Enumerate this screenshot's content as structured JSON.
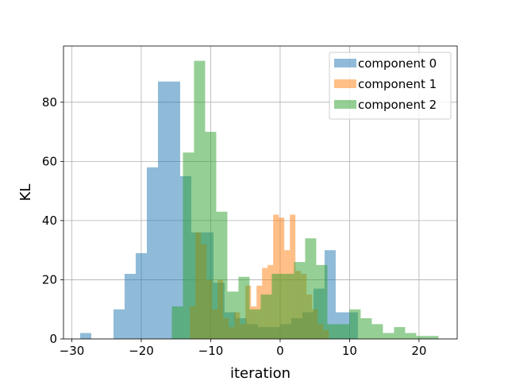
{
  "chart_data": {
    "type": "histogram",
    "xlabel": "iteration",
    "ylabel": "KL",
    "xlim": [
      -31.2,
      25.5
    ],
    "ylim": [
      0,
      99
    ],
    "xticks": [
      -30,
      -20,
      -10,
      0,
      10,
      20
    ],
    "yticks": [
      0,
      20,
      40,
      60,
      80
    ],
    "grid": true,
    "legend_position": "top-right",
    "series": [
      {
        "name": "component 0",
        "color": "#1f77b4",
        "bins": [
          {
            "x0": -28.8,
            "x1": -27.2,
            "value": 2
          },
          {
            "x0": -24.0,
            "x1": -22.4,
            "value": 10
          },
          {
            "x0": -22.4,
            "x1": -20.8,
            "value": 22
          },
          {
            "x0": -20.8,
            "x1": -19.2,
            "value": 29
          },
          {
            "x0": -19.2,
            "x1": -17.6,
            "value": 58
          },
          {
            "x0": -17.6,
            "x1": -16.0,
            "value": 87
          },
          {
            "x0": -16.0,
            "x1": -14.4,
            "value": 87
          },
          {
            "x0": -14.4,
            "x1": -12.8,
            "value": 55
          },
          {
            "x0": -12.8,
            "x1": -11.2,
            "value": 36
          },
          {
            "x0": -11.2,
            "x1": -9.6,
            "value": 36
          },
          {
            "x0": -9.6,
            "x1": -8.0,
            "value": 19
          },
          {
            "x0": -8.0,
            "x1": -6.4,
            "value": 9
          },
          {
            "x0": -6.4,
            "x1": -4.8,
            "value": 7
          },
          {
            "x0": -4.8,
            "x1": -3.2,
            "value": 5
          },
          {
            "x0": -3.2,
            "x1": -1.6,
            "value": 4
          },
          {
            "x0": -1.6,
            "x1": 0.0,
            "value": 4
          },
          {
            "x0": 0.0,
            "x1": 1.6,
            "value": 5
          },
          {
            "x0": 1.6,
            "x1": 3.2,
            "value": 7
          },
          {
            "x0": 3.2,
            "x1": 4.8,
            "value": 9
          },
          {
            "x0": 4.8,
            "x1": 6.4,
            "value": 17
          },
          {
            "x0": 6.4,
            "x1": 8.0,
            "value": 30
          },
          {
            "x0": 8.0,
            "x1": 9.6,
            "value": 9
          },
          {
            "x0": 9.6,
            "x1": 11.2,
            "value": 9
          }
        ]
      },
      {
        "name": "component 1",
        "color": "#ff7f0e",
        "bins": [
          {
            "x0": -13.0,
            "x1": -12.2,
            "value": 11
          },
          {
            "x0": -12.2,
            "x1": -11.4,
            "value": 36
          },
          {
            "x0": -11.4,
            "x1": -10.6,
            "value": 32
          },
          {
            "x0": -10.6,
            "x1": -9.8,
            "value": 20
          },
          {
            "x0": -9.8,
            "x1": -9.0,
            "value": 10
          },
          {
            "x0": -9.0,
            "x1": -8.2,
            "value": 20
          },
          {
            "x0": -8.2,
            "x1": -7.4,
            "value": 7
          },
          {
            "x0": -7.4,
            "x1": -6.6,
            "value": 4
          },
          {
            "x0": -6.6,
            "x1": -5.8,
            "value": 9
          },
          {
            "x0": -5.8,
            "x1": -5.0,
            "value": 5
          },
          {
            "x0": -5.0,
            "x1": -4.2,
            "value": 18
          },
          {
            "x0": -4.2,
            "x1": -3.4,
            "value": 11
          },
          {
            "x0": -3.4,
            "x1": -2.6,
            "value": 18
          },
          {
            "x0": -2.6,
            "x1": -1.8,
            "value": 24
          },
          {
            "x0": -1.8,
            "x1": -1.0,
            "value": 25
          },
          {
            "x0": -1.0,
            "x1": -0.2,
            "value": 42
          },
          {
            "x0": -0.2,
            "x1": 0.6,
            "value": 41
          },
          {
            "x0": 0.6,
            "x1": 1.4,
            "value": 30
          },
          {
            "x0": 1.4,
            "x1": 2.2,
            "value": 42
          },
          {
            "x0": 2.2,
            "x1": 3.0,
            "value": 23
          },
          {
            "x0": 3.0,
            "x1": 3.8,
            "value": 22
          },
          {
            "x0": 3.8,
            "x1": 4.6,
            "value": 15
          },
          {
            "x0": 4.6,
            "x1": 5.4,
            "value": 10
          },
          {
            "x0": 5.4,
            "x1": 6.2,
            "value": 5
          },
          {
            "x0": 6.2,
            "x1": 7.0,
            "value": 3
          }
        ]
      },
      {
        "name": "component 2",
        "color": "#2ca02c",
        "bins": [
          {
            "x0": -15.6,
            "x1": -14.0,
            "value": 11
          },
          {
            "x0": -14.0,
            "x1": -12.4,
            "value": 63
          },
          {
            "x0": -12.4,
            "x1": -10.8,
            "value": 94
          },
          {
            "x0": -10.8,
            "x1": -9.2,
            "value": 70
          },
          {
            "x0": -9.2,
            "x1": -7.6,
            "value": 43
          },
          {
            "x0": -7.6,
            "x1": -6.0,
            "value": 16
          },
          {
            "x0": -6.0,
            "x1": -4.4,
            "value": 21
          },
          {
            "x0": -4.4,
            "x1": -2.8,
            "value": 10
          },
          {
            "x0": -2.8,
            "x1": -1.2,
            "value": 15
          },
          {
            "x0": -1.2,
            "x1": 0.4,
            "value": 22
          },
          {
            "x0": 0.4,
            "x1": 2.0,
            "value": 22
          },
          {
            "x0": 2.0,
            "x1": 3.6,
            "value": 26
          },
          {
            "x0": 3.6,
            "x1": 5.2,
            "value": 34
          },
          {
            "x0": 5.2,
            "x1": 6.8,
            "value": 25
          },
          {
            "x0": 6.8,
            "x1": 8.4,
            "value": 5
          },
          {
            "x0": 8.4,
            "x1": 10.0,
            "value": 5
          },
          {
            "x0": 10.0,
            "x1": 11.6,
            "value": 10
          },
          {
            "x0": 11.6,
            "x1": 13.2,
            "value": 7
          },
          {
            "x0": 13.2,
            "x1": 14.8,
            "value": 5
          },
          {
            "x0": 14.8,
            "x1": 16.4,
            "value": 2
          },
          {
            "x0": 16.4,
            "x1": 18.0,
            "value": 4
          },
          {
            "x0": 18.0,
            "x1": 19.6,
            "value": 2
          },
          {
            "x0": 19.6,
            "x1": 21.2,
            "value": 1
          },
          {
            "x0": 21.2,
            "x1": 22.8,
            "value": 1
          }
        ]
      }
    ]
  }
}
